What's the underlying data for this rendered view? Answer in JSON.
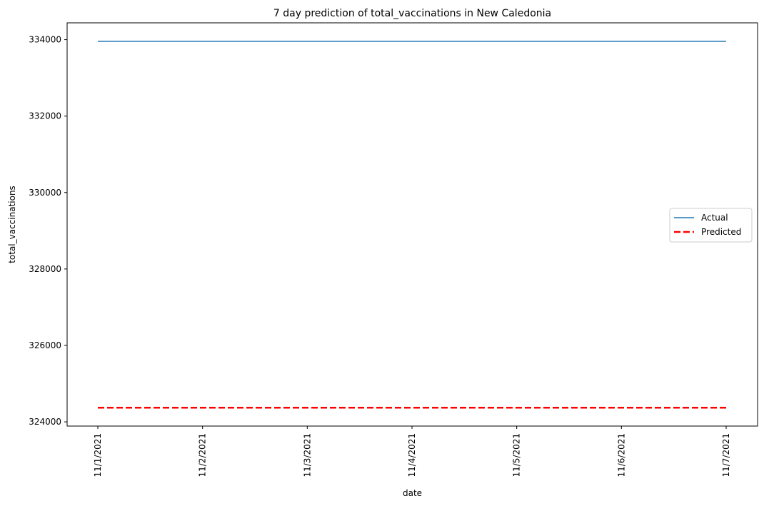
{
  "chart_data": {
    "type": "line",
    "title": "7 day prediction of total_vaccinations in New Caledonia",
    "xlabel": "date",
    "ylabel": "total_vaccinations",
    "x": [
      "11/1/2021",
      "11/2/2021",
      "11/3/2021",
      "11/4/2021",
      "11/5/2021",
      "11/6/2021",
      "11/7/2021"
    ],
    "series": [
      {
        "name": "Actual",
        "values": [
          333958,
          333958,
          333958,
          333958,
          333958,
          333958,
          333958
        ],
        "color": "#1f77b4",
        "style": "solid"
      },
      {
        "name": "Predicted",
        "values": [
          324370,
          324370,
          324370,
          324370,
          324370,
          324370,
          324370
        ],
        "color": "#ff0000",
        "style": "dashed"
      }
    ],
    "ylim": [
      323890,
      334440
    ],
    "yticks": [
      324000,
      326000,
      328000,
      330000,
      332000,
      334000
    ],
    "grid": false,
    "legend": "center-right"
  }
}
